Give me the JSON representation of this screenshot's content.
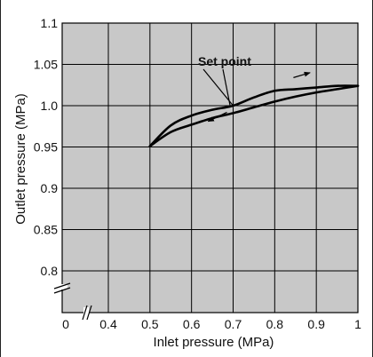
{
  "chart_data": {
    "type": "line",
    "title": "",
    "xlabel": "Inlet pressure (MPa)",
    "ylabel": "Outlet pressure (MPa)",
    "xlim": [
      0.4,
      1.0
    ],
    "ylim": [
      0.8,
      1.1
    ],
    "x_ticks": [
      {
        "value": 0.4,
        "label": "0.4"
      },
      {
        "value": 0.5,
        "label": "0.5"
      },
      {
        "value": 0.6,
        "label": "0.6"
      },
      {
        "value": 0.7,
        "label": "0.7"
      },
      {
        "value": 0.8,
        "label": "0.8"
      },
      {
        "value": 0.9,
        "label": "0.9"
      },
      {
        "value": 1.0,
        "label": "1"
      }
    ],
    "x_origin_label": "0",
    "y_ticks": [
      {
        "value": 0.8,
        "label": "0.8"
      },
      {
        "value": 0.85,
        "label": "0.85"
      },
      {
        "value": 0.9,
        "label": "0.9"
      },
      {
        "value": 0.95,
        "label": "0.95"
      },
      {
        "value": 1.0,
        "label": "1.0"
      },
      {
        "value": 1.05,
        "label": "1.05"
      },
      {
        "value": 1.1,
        "label": "1.1"
      }
    ],
    "grid": true,
    "axis_breaks": [
      "x",
      "y"
    ],
    "background_color": "#c8c8c8",
    "line_color": "#000000",
    "series": [
      {
        "direction": "increasing",
        "x": [
          0.5,
          0.55,
          0.6,
          0.65,
          0.7,
          0.75,
          0.8,
          0.85,
          0.9,
          0.95,
          1.0
        ],
        "y": [
          0.951,
          0.976,
          0.988,
          0.995,
          1.0,
          1.01,
          1.018,
          1.02,
          1.022,
          1.024,
          1.024
        ]
      },
      {
        "direction": "decreasing",
        "x": [
          0.5,
          0.55,
          0.6,
          0.65,
          0.7,
          0.75,
          0.8,
          0.85,
          0.9,
          0.95,
          1.0
        ],
        "y": [
          0.951,
          0.968,
          0.977,
          0.985,
          0.991,
          0.998,
          1.005,
          1.011,
          1.016,
          1.02,
          1.024
        ]
      }
    ],
    "annotations": [
      {
        "text": "Set point",
        "x": 0.7,
        "y": 1.0
      }
    ],
    "direction_arrows": [
      {
        "series": "increasing",
        "from": [
          0.845,
          1.034
        ],
        "to": [
          0.885,
          1.04
        ]
      },
      {
        "series": "decreasing",
        "from": [
          0.685,
          0.992
        ],
        "to": [
          0.64,
          0.981
        ]
      }
    ]
  }
}
